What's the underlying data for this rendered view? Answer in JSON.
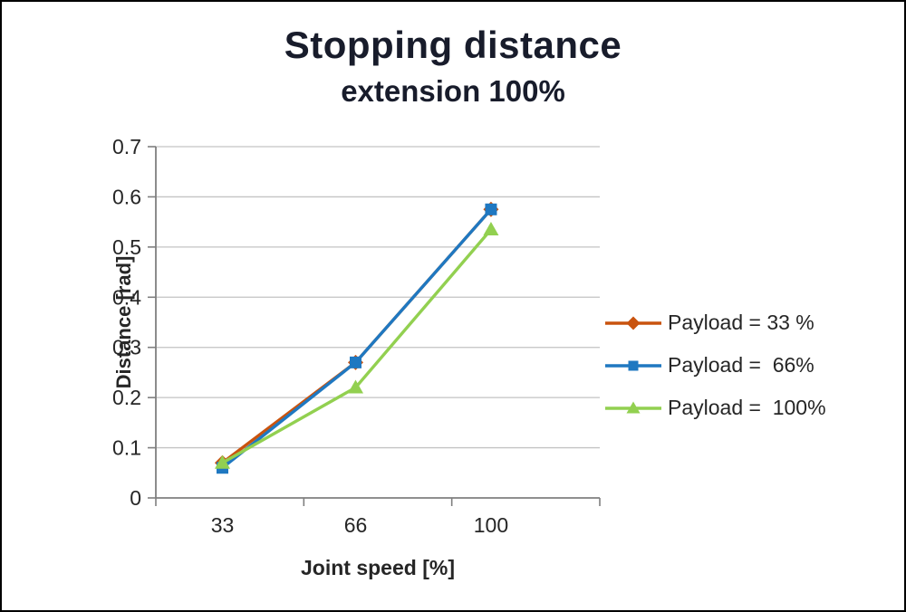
{
  "chart_data": {
    "type": "line",
    "title": "Stopping distance",
    "subtitle": "extension 100%",
    "xlabel": "Joint speed [%]",
    "ylabel": "Distance [rad]",
    "categories": [
      "33",
      "66",
      "100"
    ],
    "series": [
      {
        "name": "Payload = 33 %",
        "color": "#c9530e",
        "marker": "diamond",
        "values": [
          0.07,
          0.27,
          0.575
        ]
      },
      {
        "name": "Payload =  66%",
        "color": "#1f78c1",
        "marker": "square",
        "values": [
          0.06,
          0.27,
          0.575
        ]
      },
      {
        "name": "Payload =  100%",
        "color": "#92d050",
        "marker": "triangle",
        "values": [
          0.07,
          0.22,
          0.535
        ]
      }
    ],
    "ylim": [
      0,
      0.7
    ],
    "ytick_step": 0.1,
    "ytick_labels": [
      "0",
      "0.1",
      "0.2",
      "0.3",
      "0.4",
      "0.5",
      "0.6",
      "0.7"
    ],
    "grid": true,
    "legend_position": "right",
    "colors": {
      "grid": "#c3c3c3",
      "axis": "#7f7f7f",
      "tick_text": "#262626",
      "title_text": "#181c2b"
    }
  }
}
